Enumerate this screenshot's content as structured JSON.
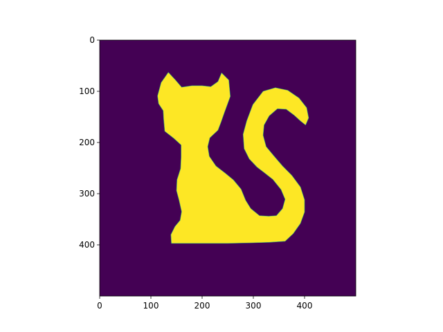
{
  "chart_data": {
    "type": "image",
    "colormap": "viridis",
    "colors": {
      "background": "#440154",
      "foreground": "#fde725"
    },
    "image_size": [
      500,
      500
    ],
    "xlim": [
      0,
      500
    ],
    "ylim": [
      500,
      0
    ],
    "x_ticks": [
      0,
      100,
      200,
      300,
      400
    ],
    "y_ticks": [
      0,
      100,
      200,
      300,
      400
    ],
    "x_tick_labels": [
      "0",
      "100",
      "200",
      "300",
      "400"
    ],
    "y_tick_labels": [
      "0",
      "100",
      "200",
      "300",
      "400"
    ],
    "title": "",
    "xlabel": "",
    "ylabel": "",
    "grid": false,
    "shape_outline": [
      [
        140,
        397
      ],
      [
        139,
        380
      ],
      [
        147,
        364
      ],
      [
        157,
        352
      ],
      [
        160,
        335
      ],
      [
        155,
        313
      ],
      [
        150,
        294
      ],
      [
        151,
        273
      ],
      [
        158,
        251
      ],
      [
        159,
        228
      ],
      [
        159,
        205
      ],
      [
        145,
        192
      ],
      [
        127,
        178
      ],
      [
        125,
        155
      ],
      [
        124,
        138
      ],
      [
        115,
        124
      ],
      [
        113,
        109
      ],
      [
        120,
        83
      ],
      [
        134,
        63
      ],
      [
        148,
        78
      ],
      [
        160,
        92
      ],
      [
        180,
        89
      ],
      [
        200,
        89
      ],
      [
        217,
        91
      ],
      [
        231,
        81
      ],
      [
        238,
        64
      ],
      [
        252,
        78
      ],
      [
        255,
        110
      ],
      [
        243,
        143
      ],
      [
        237,
        160
      ],
      [
        231,
        176
      ],
      [
        215,
        191
      ],
      [
        211,
        208
      ],
      [
        214,
        227
      ],
      [
        227,
        246
      ],
      [
        244,
        259
      ],
      [
        261,
        273
      ],
      [
        276,
        291
      ],
      [
        285,
        313
      ],
      [
        295,
        329
      ],
      [
        312,
        343
      ],
      [
        330,
        344
      ],
      [
        345,
        343
      ],
      [
        357,
        329
      ],
      [
        362,
        311
      ],
      [
        354,
        292
      ],
      [
        338,
        272
      ],
      [
        320,
        258
      ],
      [
        307,
        248
      ],
      [
        292,
        232
      ],
      [
        282,
        212
      ],
      [
        280,
        184
      ],
      [
        287,
        158
      ],
      [
        299,
        126
      ],
      [
        319,
        100
      ],
      [
        343,
        93
      ],
      [
        367,
        98
      ],
      [
        389,
        113
      ],
      [
        404,
        132
      ],
      [
        408,
        152
      ],
      [
        402,
        166
      ],
      [
        392,
        158
      ],
      [
        380,
        147
      ],
      [
        364,
        135
      ],
      [
        347,
        134
      ],
      [
        331,
        148
      ],
      [
        321,
        166
      ],
      [
        319,
        186
      ],
      [
        325,
        208
      ],
      [
        339,
        225
      ],
      [
        357,
        246
      ],
      [
        375,
        264
      ],
      [
        392,
        287
      ],
      [
        400,
        312
      ],
      [
        400,
        336
      ],
      [
        392,
        358
      ],
      [
        378,
        378
      ],
      [
        362,
        393
      ],
      [
        331,
        395
      ],
      [
        300,
        396
      ],
      [
        250,
        397
      ],
      [
        200,
        397
      ],
      [
        160,
        397
      ]
    ]
  }
}
